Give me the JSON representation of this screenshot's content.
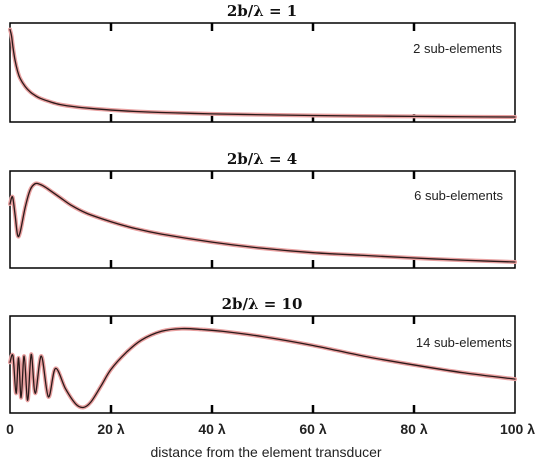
{
  "chart_data": [
    {
      "type": "line",
      "title": "2b/λ = 1",
      "annotation": "2 sub-elements",
      "x": [
        0,
        0.3,
        0.6,
        1,
        1.5,
        2,
        3,
        4,
        5,
        6,
        8,
        10,
        13,
        16,
        20,
        25,
        30,
        35,
        40,
        50,
        60,
        70,
        80,
        90,
        100
      ],
      "y": [
        1.0,
        0.93,
        0.8,
        0.66,
        0.54,
        0.46,
        0.37,
        0.31,
        0.27,
        0.24,
        0.2,
        0.17,
        0.145,
        0.128,
        0.11,
        0.094,
        0.083,
        0.075,
        0.068,
        0.058,
        0.05,
        0.044,
        0.04,
        0.036,
        0.033
      ],
      "xlim": [
        0,
        100
      ],
      "ylim": [
        0,
        1.05
      ],
      "grid": false
    },
    {
      "type": "line",
      "title": "2b/λ = 4",
      "annotation": "6 sub-elements",
      "x": [
        0,
        0.5,
        1,
        1.5,
        2,
        3,
        4,
        5,
        6,
        7,
        8,
        10,
        12,
        15,
        20,
        25,
        30,
        40,
        50,
        60,
        70,
        80,
        90,
        100
      ],
      "y": [
        0.7,
        0.78,
        0.58,
        0.35,
        0.38,
        0.66,
        0.86,
        0.93,
        0.92,
        0.89,
        0.85,
        0.77,
        0.69,
        0.6,
        0.5,
        0.42,
        0.36,
        0.27,
        0.2,
        0.15,
        0.12,
        0.09,
        0.065,
        0.045
      ],
      "xlim": [
        0,
        100
      ],
      "ylim": [
        0,
        1.05
      ],
      "grid": false
    },
    {
      "type": "line",
      "title": "2b/λ = 10",
      "annotation": "14 sub-elements",
      "x": [
        0,
        0.6,
        1.2,
        1.7,
        2.2,
        2.8,
        3.5,
        4.2,
        5,
        6.2,
        7.6,
        9,
        11,
        13,
        14.5,
        16,
        18,
        20,
        23,
        26,
        30,
        34,
        38,
        42,
        50,
        60,
        70,
        80,
        90,
        100
      ],
      "y": [
        0.55,
        0.62,
        0.2,
        0.6,
        0.15,
        0.62,
        0.12,
        0.64,
        0.2,
        0.62,
        0.16,
        0.48,
        0.25,
        0.08,
        0.04,
        0.1,
        0.28,
        0.47,
        0.66,
        0.8,
        0.9,
        0.93,
        0.92,
        0.9,
        0.84,
        0.74,
        0.62,
        0.52,
        0.43,
        0.36
      ],
      "xlim": [
        0,
        100
      ],
      "ylim": [
        0,
        1.05
      ],
      "grid": false
    }
  ],
  "x_axis": {
    "tick_labels": [
      "0",
      "20 λ",
      "40 λ",
      "60 λ",
      "80 λ",
      "100 λ"
    ],
    "tick_values": [
      0,
      20,
      40,
      60,
      80,
      100
    ],
    "xlabel": "distance from the element transducer"
  },
  "colors": {
    "curve": "#2a1a1a",
    "halo": "#e8a0a0",
    "frame": "#000000"
  }
}
